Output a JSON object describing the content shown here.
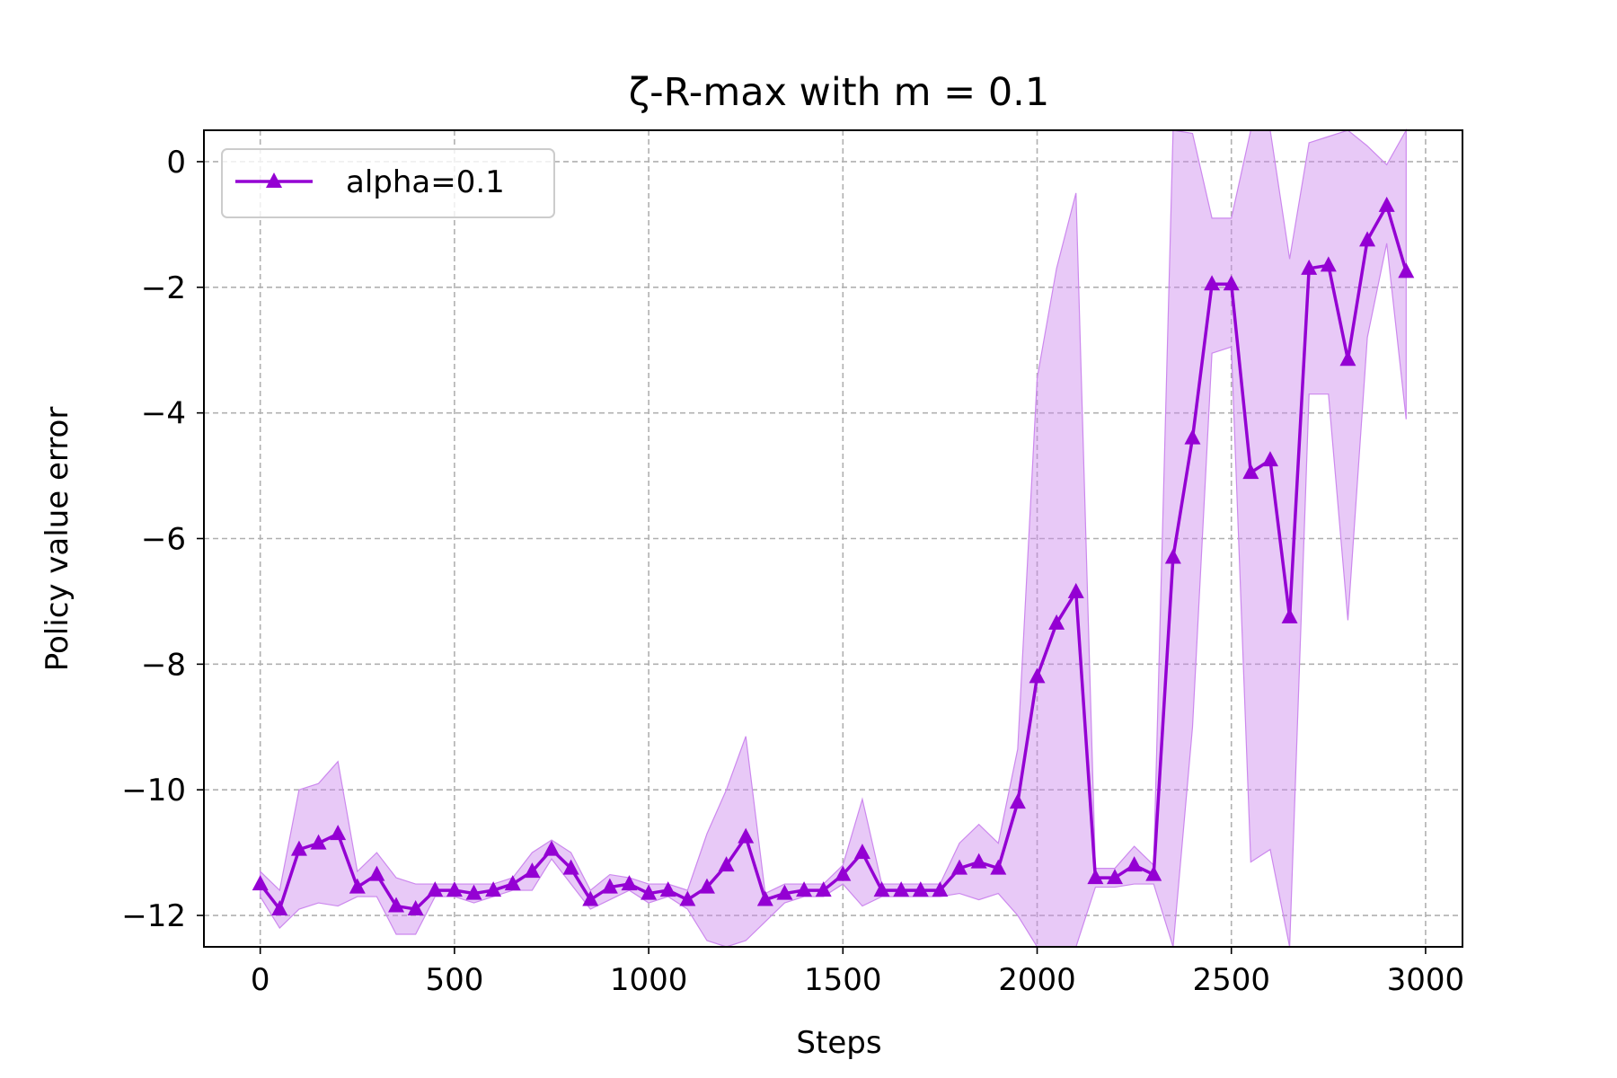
{
  "chart_data": {
    "type": "line",
    "title": "ζ-R-max with m = 0.1",
    "xlabel": "Steps",
    "ylabel": "Policy value error",
    "xlim": [
      -145,
      3095
    ],
    "ylim": [
      -12.5,
      0.5
    ],
    "xticks": [
      0,
      500,
      1000,
      1500,
      2000,
      2500,
      3000
    ],
    "xtick_labels": [
      "0",
      "500",
      "1000",
      "1500",
      "2000",
      "2500",
      "3000"
    ],
    "yticks": [
      0,
      -2,
      -4,
      -6,
      -8,
      -10,
      -12
    ],
    "ytick_labels": [
      "0",
      "−2",
      "−4",
      "−6",
      "−8",
      "−10",
      "−12"
    ],
    "grid": true,
    "legend_position": "top-left",
    "series": [
      {
        "name": "alpha=0.1",
        "color": "#9400d3",
        "band_color": "#cc88ee",
        "marker": "triangle-up",
        "x": [
          0,
          50,
          100,
          150,
          200,
          250,
          300,
          350,
          400,
          450,
          500,
          550,
          600,
          650,
          700,
          750,
          800,
          850,
          900,
          950,
          1000,
          1050,
          1100,
          1150,
          1200,
          1250,
          1300,
          1350,
          1400,
          1450,
          1500,
          1550,
          1600,
          1650,
          1700,
          1750,
          1800,
          1850,
          1900,
          1950,
          2000,
          2050,
          2100,
          2150,
          2200,
          2250,
          2300,
          2350,
          2400,
          2450,
          2500,
          2550,
          2600,
          2650,
          2700,
          2750,
          2800,
          2850,
          2900,
          2950
        ],
        "y": [
          -11.5,
          -11.9,
          -10.95,
          -10.85,
          -10.7,
          -11.55,
          -11.35,
          -11.85,
          -11.9,
          -11.6,
          -11.6,
          -11.65,
          -11.6,
          -11.5,
          -11.3,
          -10.95,
          -11.25,
          -11.75,
          -11.55,
          -11.5,
          -11.65,
          -11.6,
          -11.75,
          -11.55,
          -11.2,
          -10.75,
          -11.75,
          -11.65,
          -11.6,
          -11.6,
          -11.35,
          -11.0,
          -11.6,
          -11.6,
          -11.6,
          -11.6,
          -11.25,
          -11.15,
          -11.25,
          -10.2,
          -8.2,
          -7.35,
          -6.85,
          -11.4,
          -11.4,
          -11.2,
          -11.35,
          -6.3,
          -4.4,
          -1.95,
          -1.95,
          -4.95,
          -4.75,
          -7.25,
          -1.7,
          -1.65,
          -3.15,
          -1.25,
          -0.7,
          -1.75
        ],
        "upper": [
          -11.3,
          -11.6,
          -10.0,
          -9.9,
          -9.55,
          -11.3,
          -11.0,
          -11.4,
          -11.5,
          -11.5,
          -11.5,
          -11.5,
          -11.5,
          -11.4,
          -11.0,
          -10.8,
          -11.0,
          -11.6,
          -11.35,
          -11.4,
          -11.5,
          -11.5,
          -11.6,
          -10.7,
          -10.0,
          -9.15,
          -11.65,
          -11.5,
          -11.5,
          -11.5,
          -11.2,
          -10.15,
          -11.5,
          -11.5,
          -11.5,
          -11.5,
          -10.85,
          -10.55,
          -10.85,
          -9.35,
          -3.45,
          -1.7,
          -0.5,
          -11.25,
          -11.25,
          -10.9,
          -11.2,
          0.5,
          0.45,
          -0.9,
          -0.9,
          0.5,
          0.5,
          -1.55,
          0.3,
          0.4,
          0.5,
          0.25,
          -0.05,
          0.5
        ],
        "lower": [
          -11.7,
          -12.2,
          -11.9,
          -11.8,
          -11.85,
          -11.7,
          -11.7,
          -12.3,
          -12.3,
          -11.7,
          -11.7,
          -11.8,
          -11.7,
          -11.6,
          -11.6,
          -11.1,
          -11.5,
          -11.9,
          -11.75,
          -11.6,
          -11.8,
          -11.7,
          -11.9,
          -12.4,
          -12.5,
          -12.4,
          -12.1,
          -11.8,
          -11.7,
          -11.7,
          -11.5,
          -11.85,
          -11.7,
          -11.7,
          -11.7,
          -11.7,
          -11.65,
          -11.75,
          -11.65,
          -12.0,
          -12.5,
          -12.5,
          -12.5,
          -11.55,
          -11.55,
          -11.5,
          -11.5,
          -12.5,
          -9.0,
          -3.05,
          -2.95,
          -11.15,
          -10.95,
          -12.5,
          -3.7,
          -3.7,
          -7.3,
          -2.8,
          -1.3,
          -4.1
        ]
      }
    ]
  }
}
